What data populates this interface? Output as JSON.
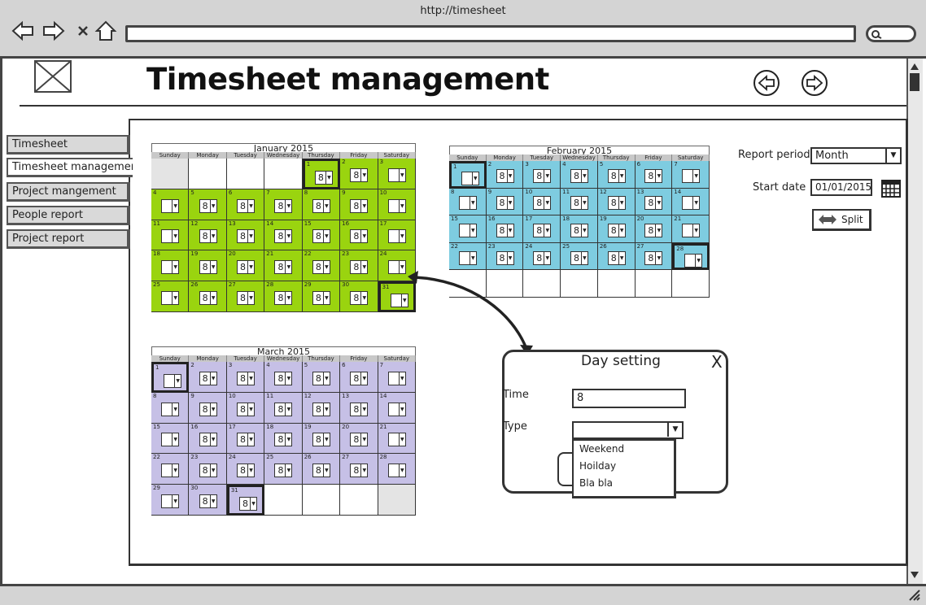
{
  "browser": {
    "url": "http://timesheet"
  },
  "header": {
    "title": "Timesheet management"
  },
  "sidebar": {
    "items": [
      {
        "label": "Timesheet"
      },
      {
        "label": "Timesheet management",
        "active": true
      },
      {
        "label": "Project mangement"
      },
      {
        "label": "People report"
      },
      {
        "label": "Project report"
      }
    ]
  },
  "weekdays": [
    "Sunday",
    "Monday",
    "Tuesday",
    "Wednesday",
    "Thursday",
    "Friday",
    "Saturday"
  ],
  "calendars": [
    {
      "title": "January 2015",
      "color": "#9ad40f",
      "first_weekday": 4,
      "days": 31,
      "selected_days": [
        1,
        31
      ]
    },
    {
      "title": "February 2015",
      "color": "#7ecce0",
      "first_weekday": 0,
      "days": 28,
      "selected_days": [
        1,
        28
      ]
    },
    {
      "title": "March 2015",
      "color": "#c6c0e6",
      "first_weekday": 0,
      "days": 31,
      "selected_days": [
        1,
        31
      ]
    }
  ],
  "default_hours": "8",
  "report": {
    "period_label": "Report period",
    "period_value": "Month",
    "start_label": "Start date",
    "start_value": "01/01/2015",
    "split_label": "Split"
  },
  "dialog": {
    "title": "Day setting",
    "close": "X",
    "time_label": "Time",
    "time_value": "8",
    "type_label": "Type",
    "type_options": [
      "Weekend",
      "Hoilday",
      "Bla bla"
    ]
  }
}
